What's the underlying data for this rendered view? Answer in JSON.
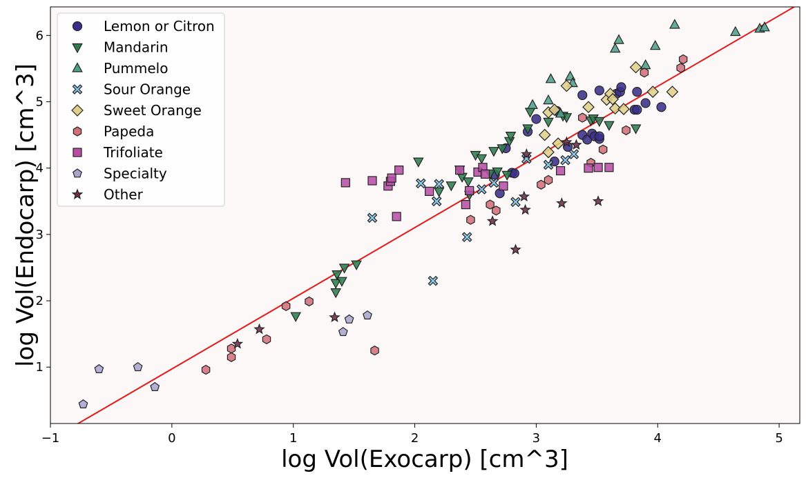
{
  "chart_data": {
    "type": "scatter",
    "xlabel": "log Vol(Exocarp) [cm^3]",
    "ylabel": "log Vol(Endocarp) [cm^3]",
    "xlim": [
      -1.0,
      5.17
    ],
    "ylim": [
      0.15,
      6.43
    ],
    "x_ticks": [
      -1,
      0,
      1,
      2,
      3,
      4,
      5
    ],
    "y_ticks": [
      1,
      2,
      3,
      4,
      5,
      6
    ],
    "x_tick_labels": [
      "−1",
      "0",
      "1",
      "2",
      "3",
      "4",
      "5"
    ],
    "y_tick_labels": [
      "1",
      "2",
      "3",
      "4",
      "5",
      "6"
    ],
    "legend_position": "top-left",
    "background": "#fdf8f8",
    "fit_line": {
      "color": "#e31a1c",
      "points": [
        [
          -0.8,
          0.12
        ],
        [
          5.17,
          6.48
        ]
      ]
    },
    "series": [
      {
        "name": "Lemon or Citron",
        "marker": "circle",
        "color": "#3a2f8a",
        "points": [
          [
            2.66,
            3.9
          ],
          [
            2.7,
            3.62
          ],
          [
            2.75,
            4.3
          ],
          [
            2.8,
            3.93
          ],
          [
            2.82,
            3.92
          ],
          [
            2.93,
            4.55
          ],
          [
            3.0,
            4.74
          ],
          [
            3.15,
            4.1
          ],
          [
            3.17,
            4.86
          ],
          [
            3.26,
            4.32
          ],
          [
            3.38,
            5.1
          ],
          [
            3.38,
            4.5
          ],
          [
            3.42,
            4.43
          ],
          [
            3.46,
            4.52
          ],
          [
            3.48,
            4.48
          ],
          [
            3.52,
            4.44
          ],
          [
            3.52,
            4.48
          ],
          [
            3.52,
            5.17
          ],
          [
            3.66,
            5.12
          ],
          [
            3.69,
            5.15
          ],
          [
            3.7,
            5.22
          ],
          [
            3.81,
            4.88
          ],
          [
            3.83,
            4.88
          ],
          [
            3.83,
            5.15
          ],
          [
            3.9,
            4.98
          ],
          [
            4.03,
            4.92
          ]
        ]
      },
      {
        "name": "Mandarin",
        "marker": "triangle-down",
        "color": "#2e7d4f",
        "points": [
          [
            1.02,
            1.77
          ],
          [
            1.35,
            2.27
          ],
          [
            1.35,
            2.13
          ],
          [
            1.36,
            2.4
          ],
          [
            1.4,
            2.3
          ],
          [
            1.42,
            2.5
          ],
          [
            1.52,
            2.55
          ],
          [
            2.03,
            4.1
          ],
          [
            2.2,
            3.65
          ],
          [
            2.3,
            3.74
          ],
          [
            2.37,
            3.98
          ],
          [
            2.39,
            3.87
          ],
          [
            2.44,
            3.8
          ],
          [
            2.45,
            3.6
          ],
          [
            2.5,
            4.2
          ],
          [
            2.55,
            4.15
          ],
          [
            2.62,
            3.92
          ],
          [
            2.65,
            4.26
          ],
          [
            2.68,
            3.95
          ],
          [
            2.72,
            4.3
          ],
          [
            2.76,
            3.9
          ],
          [
            2.78,
            4.41
          ],
          [
            2.79,
            4.49
          ],
          [
            2.93,
            4.6
          ],
          [
            2.95,
            4.85
          ],
          [
            3.1,
            4.7
          ],
          [
            3.22,
            4.79
          ],
          [
            3.25,
            4.77
          ],
          [
            3.45,
            4.72
          ],
          [
            3.47,
            4.75
          ],
          [
            3.52,
            4.71
          ],
          [
            3.6,
            4.65
          ],
          [
            3.82,
            4.6
          ]
        ]
      },
      {
        "name": "Pummelo",
        "marker": "triangle-up",
        "color": "#4e9e8a",
        "points": [
          [
            2.97,
            4.95
          ],
          [
            3.1,
            5.02
          ],
          [
            3.12,
            5.34
          ],
          [
            3.2,
            4.82
          ],
          [
            3.28,
            5.38
          ],
          [
            3.3,
            5.28
          ],
          [
            3.65,
            5.8
          ],
          [
            3.68,
            5.93
          ],
          [
            3.9,
            5.55
          ],
          [
            3.98,
            5.84
          ],
          [
            4.14,
            6.16
          ],
          [
            4.64,
            6.05
          ],
          [
            4.84,
            6.1
          ],
          [
            4.88,
            6.12
          ]
        ]
      },
      {
        "name": "Sour Orange",
        "marker": "x",
        "color": "#7ec3e6",
        "points": [
          [
            1.65,
            3.25
          ],
          [
            2.05,
            3.77
          ],
          [
            2.18,
            3.5
          ],
          [
            2.2,
            3.76
          ],
          [
            2.15,
            2.3
          ],
          [
            2.43,
            2.96
          ],
          [
            2.55,
            3.68
          ],
          [
            2.65,
            3.78
          ],
          [
            2.83,
            3.49
          ],
          [
            2.92,
            4.14
          ],
          [
            3.1,
            4.05
          ],
          [
            3.24,
            4.12
          ],
          [
            3.31,
            4.21
          ]
        ]
      },
      {
        "name": "Sweet Orange",
        "marker": "diamond",
        "color": "#e0d08a",
        "points": [
          [
            3.07,
            4.5
          ],
          [
            3.1,
            4.24
          ],
          [
            3.1,
            4.84
          ],
          [
            3.15,
            4.88
          ],
          [
            3.18,
            4.37
          ],
          [
            3.25,
            5.24
          ],
          [
            3.43,
            4.92
          ],
          [
            3.58,
            5.03
          ],
          [
            3.61,
            5.12
          ],
          [
            3.63,
            5.04
          ],
          [
            3.65,
            4.9
          ],
          [
            3.72,
            4.89
          ],
          [
            3.82,
            5.52
          ],
          [
            3.96,
            5.15
          ],
          [
            4.12,
            5.15
          ]
        ]
      },
      {
        "name": "Papeda",
        "marker": "hexagon",
        "color": "#d1707a",
        "points": [
          [
            0.28,
            0.96
          ],
          [
            0.49,
            1.28
          ],
          [
            0.49,
            1.15
          ],
          [
            0.78,
            1.42
          ],
          [
            0.94,
            1.92
          ],
          [
            1.13,
            1.99
          ],
          [
            1.67,
            1.25
          ],
          [
            2.46,
            3.22
          ],
          [
            2.62,
            3.45
          ],
          [
            2.67,
            3.36
          ],
          [
            3.04,
            3.75
          ],
          [
            3.1,
            3.82
          ],
          [
            3.38,
            4.76
          ],
          [
            3.45,
            4.08
          ],
          [
            3.55,
            4.28
          ],
          [
            3.74,
            4.57
          ],
          [
            3.89,
            5.44
          ],
          [
            4.19,
            5.51
          ],
          [
            4.21,
            5.64
          ]
        ]
      },
      {
        "name": "Trifoliate",
        "marker": "square",
        "color": "#b84ea6",
        "points": [
          [
            1.43,
            3.78
          ],
          [
            1.65,
            3.81
          ],
          [
            1.78,
            3.73
          ],
          [
            1.8,
            3.8
          ],
          [
            1.81,
            3.85
          ],
          [
            1.85,
            3.27
          ],
          [
            1.87,
            3.97
          ],
          [
            2.12,
            3.65
          ],
          [
            2.37,
            3.97
          ],
          [
            2.42,
            3.45
          ],
          [
            2.45,
            3.66
          ],
          [
            2.52,
            3.94
          ],
          [
            2.56,
            4.01
          ],
          [
            2.58,
            3.91
          ],
          [
            2.73,
            3.73
          ],
          [
            3.2,
            3.96
          ],
          [
            3.43,
            4.0
          ],
          [
            3.51,
            4.01
          ],
          [
            3.6,
            4.01
          ]
        ]
      },
      {
        "name": "Specialty",
        "marker": "pentagon",
        "color": "#a8a5cf",
        "points": [
          [
            -0.73,
            0.44
          ],
          [
            -0.6,
            0.97
          ],
          [
            -0.28,
            1.0
          ],
          [
            -0.14,
            0.7
          ],
          [
            1.41,
            1.53
          ],
          [
            1.46,
            1.72
          ],
          [
            1.61,
            1.78
          ]
        ]
      },
      {
        "name": "Other",
        "marker": "star",
        "color": "#6b2d4a",
        "points": [
          [
            0.54,
            1.35
          ],
          [
            0.72,
            1.57
          ],
          [
            1.34,
            1.75
          ],
          [
            2.64,
            3.2
          ],
          [
            2.83,
            2.77
          ],
          [
            2.9,
            3.57
          ],
          [
            2.91,
            3.37
          ],
          [
            2.92,
            4.21
          ],
          [
            3.21,
            3.47
          ],
          [
            3.25,
            4.39
          ],
          [
            3.33,
            4.35
          ],
          [
            3.51,
            3.5
          ]
        ]
      }
    ]
  }
}
